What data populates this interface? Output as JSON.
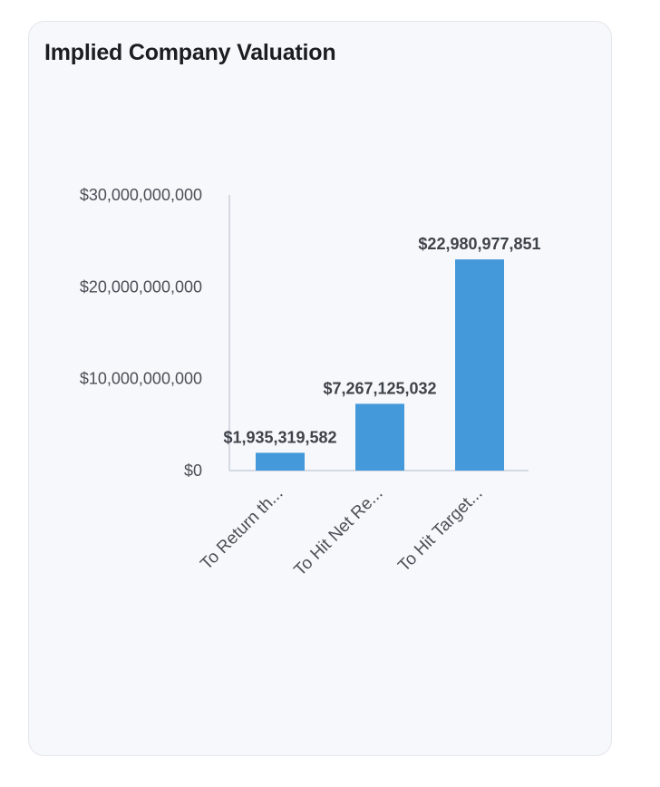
{
  "card": {
    "title": "Implied Company Valuation"
  },
  "chart_data": {
    "type": "bar",
    "title": "Implied Company Valuation",
    "categories": [
      "To Return th...",
      "To Hit Net Re...",
      "To Hit Target..."
    ],
    "values": [
      1935319582,
      7267125032,
      22980977851
    ],
    "data_labels": [
      "$1,935,319,582",
      "$7,267,125,032",
      "$22,980,977,851"
    ],
    "y_ticks": [
      0,
      10000000000,
      20000000000,
      30000000000
    ],
    "y_tick_labels": [
      "$0",
      "$10,000,000,000",
      "$20,000,000,000",
      "$30,000,000,000"
    ],
    "ylim": [
      0,
      30000000000
    ],
    "xlabel": "",
    "ylabel": "",
    "grid": false,
    "bar_color": "#4499db",
    "axis_color": "#c9cfdc"
  }
}
